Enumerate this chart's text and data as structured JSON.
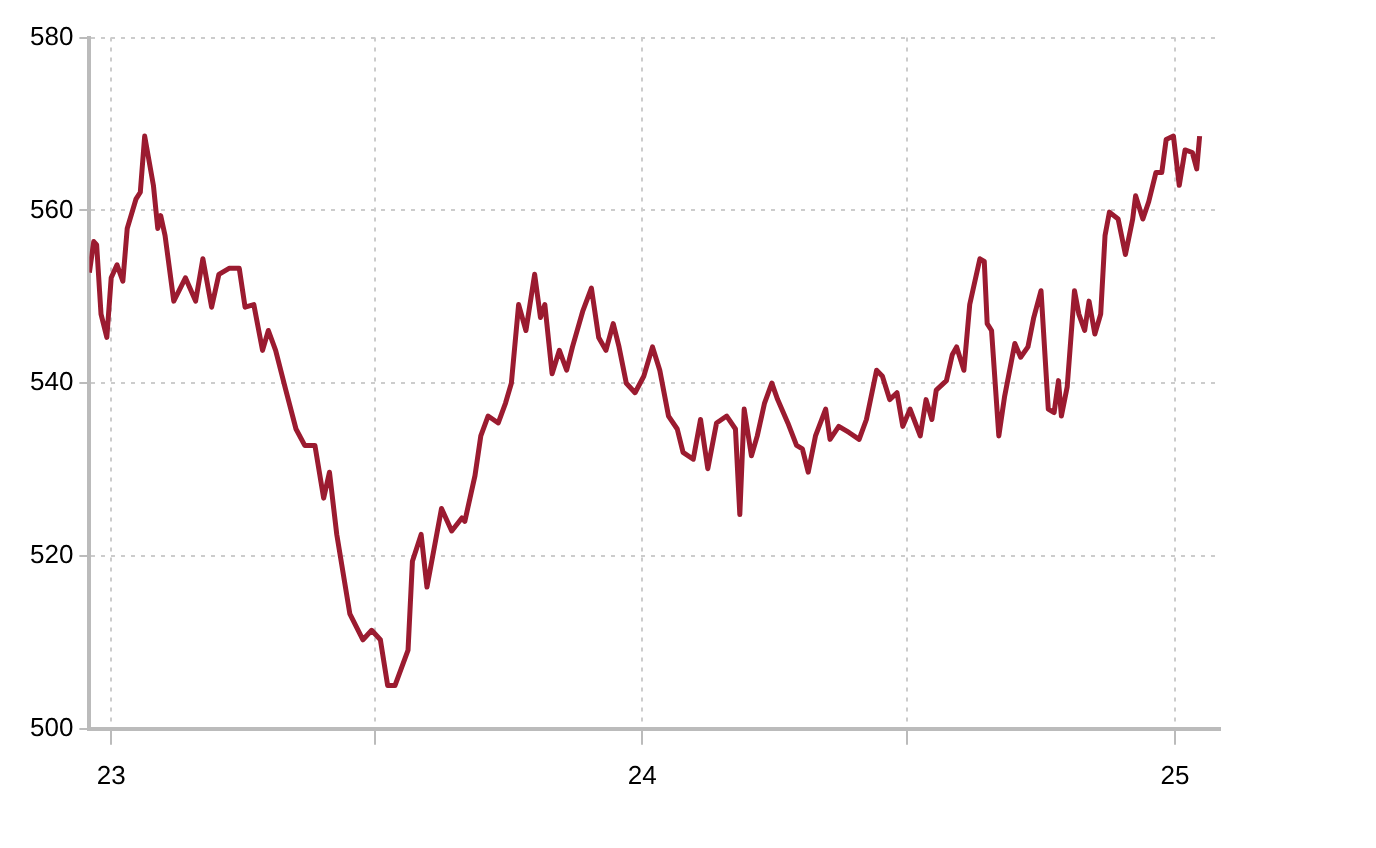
{
  "chart_data": {
    "type": "line",
    "x": [
      "2022-12-17",
      "2022-12-20",
      "2022-12-22",
      "2022-12-25",
      "2022-12-29",
      "2023-01-01",
      "2023-01-05",
      "2023-01-09",
      "2023-01-12",
      "2023-01-18",
      "2023-01-21",
      "2023-01-24",
      "2023-01-30",
      "2023-02-02",
      "2023-02-04",
      "2023-02-07",
      "2023-02-13",
      "2023-02-21",
      "2023-02-28",
      "2023-03-05",
      "2023-03-11",
      "2023-03-16",
      "2023-03-23",
      "2023-03-30",
      "2023-04-03",
      "2023-04-09",
      "2023-04-15",
      "2023-04-19",
      "2023-04-24",
      "2023-05-01",
      "2023-05-08",
      "2023-05-14",
      "2023-05-21",
      "2023-05-27",
      "2023-05-31",
      "2023-06-05",
      "2023-06-14",
      "2023-06-23",
      "2023-06-29",
      "2023-07-05",
      "2023-07-10",
      "2023-07-15",
      "2023-07-24",
      "2023-07-27",
      "2023-08-02",
      "2023-08-06",
      "2023-08-16",
      "2023-08-23",
      "2023-08-30",
      "2023-09-01",
      "2023-09-08",
      "2023-09-12",
      "2023-09-17",
      "2023-09-24",
      "2023-09-29",
      "2023-10-03",
      "2023-10-08",
      "2023-10-13",
      "2023-10-19",
      "2023-10-23",
      "2023-10-26",
      "2023-10-31",
      "2023-11-05",
      "2023-11-10",
      "2023-11-14",
      "2023-11-21",
      "2023-11-27",
      "2023-12-02",
      "2023-12-07",
      "2023-12-12",
      "2023-12-16",
      "2023-12-21",
      "2023-12-27",
      "2024-01-02",
      "2024-01-08",
      "2024-01-13",
      "2024-01-19",
      "2024-01-25",
      "2024-01-29",
      "2024-02-05",
      "2024-02-10",
      "2024-02-15",
      "2024-02-21",
      "2024-02-28",
      "2024-03-05",
      "2024-03-08",
      "2024-03-11",
      "2024-03-16",
      "2024-03-20",
      "2024-03-25",
      "2024-03-30",
      "2024-04-03",
      "2024-04-10",
      "2024-04-16",
      "2024-04-20",
      "2024-04-24",
      "2024-04-29",
      "2024-05-06",
      "2024-05-09",
      "2024-05-15",
      "2024-05-22",
      "2024-05-29",
      "2024-06-03",
      "2024-06-10",
      "2024-06-14",
      "2024-06-19",
      "2024-06-24",
      "2024-06-28",
      "2024-07-03",
      "2024-07-10",
      "2024-07-14",
      "2024-07-18",
      "2024-07-21",
      "2024-07-28",
      "2024-08-01",
      "2024-08-04",
      "2024-08-09",
      "2024-08-13",
      "2024-08-20",
      "2024-08-23",
      "2024-08-25",
      "2024-08-28",
      "2024-09-02",
      "2024-09-06",
      "2024-09-13",
      "2024-09-17",
      "2024-09-22",
      "2024-09-26",
      "2024-10-01",
      "2024-10-06",
      "2024-10-10",
      "2024-10-13",
      "2024-10-15",
      "2024-10-19",
      "2024-10-24",
      "2024-10-27",
      "2024-10-31",
      "2024-11-03",
      "2024-11-07",
      "2024-11-11",
      "2024-11-14",
      "2024-11-17",
      "2024-11-23",
      "2024-11-28",
      "2024-12-03",
      "2024-12-05",
      "2024-12-10",
      "2024-12-14",
      "2024-12-19",
      "2024-12-23",
      "2024-12-26",
      "2024-12-31",
      "2025-01-04",
      "2025-01-08",
      "2025-01-13",
      "2025-01-16",
      "2025-01-18"
    ],
    "series": [
      {
        "color": "#9b1b30",
        "values": [
          552.8,
          556.4,
          556.0,
          548,
          545.3,
          552.2,
          553.7,
          551.8,
          557.9,
          561.3,
          562.1,
          568.6,
          562.9,
          557.9,
          559.4,
          557.1,
          549.5,
          552.2,
          549.5,
          554.4,
          548.8,
          552.6,
          553.3,
          553.3,
          548.8,
          549.1,
          543.8,
          546.1,
          543.8,
          539.2,
          534.7,
          532.8,
          532.8,
          526.7,
          529.7,
          522.5,
          513.3,
          510.3,
          511.4,
          510.3,
          505.0,
          505.0,
          509.1,
          519.4,
          522.5,
          516.4,
          525.5,
          522.9,
          524.4,
          524,
          529.3,
          533.9,
          536.2,
          535.4,
          537.7,
          540,
          549.1,
          546.1,
          552.6,
          547.6,
          549.1,
          541.1,
          543.8,
          541.5,
          544.2,
          548.3,
          551.0,
          545.3,
          543.8,
          546.9,
          544.2,
          540,
          538.9,
          540.8,
          544.2,
          541.5,
          536.2,
          534.7,
          532,
          531.2,
          535.8,
          530.1,
          535.4,
          536.2,
          534.7,
          524.8,
          537,
          531.6,
          533.9,
          537.7,
          540,
          538.1,
          535.4,
          532.8,
          532.4,
          529.7,
          533.9,
          537,
          533.5,
          535,
          534.3,
          533.5,
          535.8,
          541.5,
          540.8,
          538.1,
          538.9,
          535,
          537,
          533.9,
          538.1,
          535.8,
          539.2,
          540.3,
          543.3,
          544.2,
          541.5,
          549.1,
          554.4,
          554.1,
          546.9,
          546.1,
          533.9,
          538.5,
          544.6,
          543.0,
          544.2,
          547.6,
          550.7,
          537,
          536.6,
          540.3,
          536.2,
          539.6,
          550.7,
          548,
          546.1,
          549.5,
          545.7,
          548,
          557.1,
          559.8,
          559.0,
          554.9,
          559,
          561.7,
          559,
          561,
          564.4,
          564.4,
          568.2,
          568.6,
          562.9,
          567.0,
          566.7,
          564.8,
          568.6
        ]
      }
    ],
    "xlim": [
      "2022-12-17",
      "2025-02-01"
    ],
    "xticks": [
      {
        "value": "2023-01-01",
        "label": "23"
      },
      {
        "value": "2023-07-01",
        "label": null
      },
      {
        "value": "2024-01-01",
        "label": "24"
      },
      {
        "value": "2024-07-01",
        "label": null
      },
      {
        "value": "2025-01-01",
        "label": "25"
      }
    ],
    "ylim": [
      500,
      580
    ],
    "yticks": [
      500,
      520,
      540,
      560,
      580
    ],
    "grid": true,
    "marker": "none",
    "line_style": "solid",
    "legend": false
  }
}
